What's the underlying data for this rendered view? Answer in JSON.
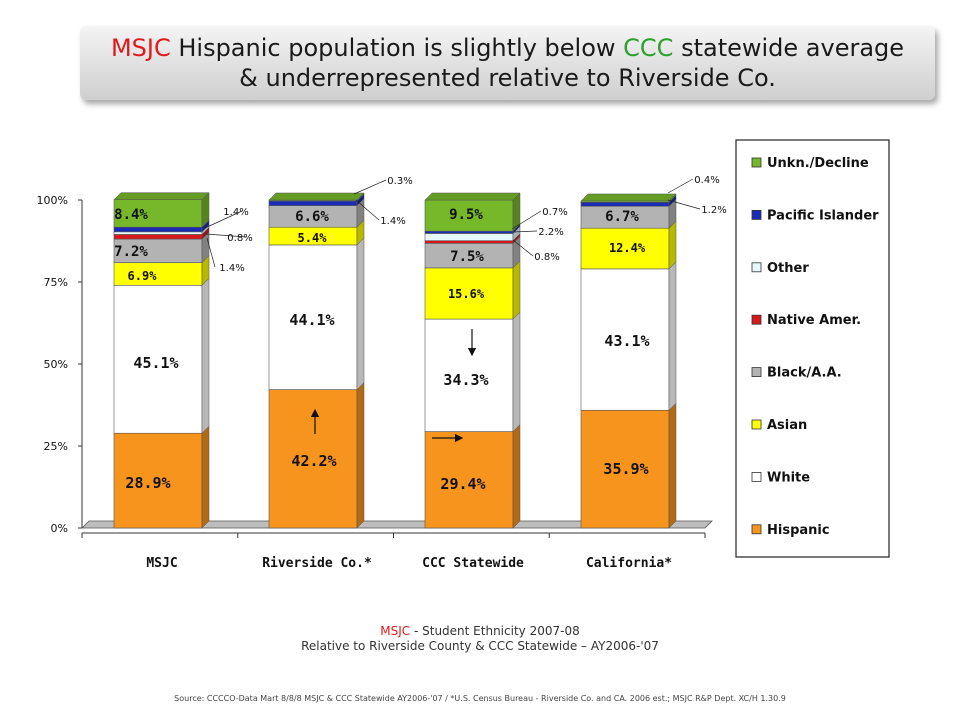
{
  "title": {
    "line1_a": "MSJC",
    "line1_b": " Hispanic population is slightly below ",
    "line1_c": "CCC",
    "line1_d": " statewide average",
    "line2": "& underrepresented relative to Riverside Co."
  },
  "caption": {
    "line1_a": "MSJC",
    "line1_b": " - Student Ethnicity 2007-08",
    "line2": "Relative to Riverside County & CCC Statewide – AY2006-'07"
  },
  "source": "Source: CCCCO-Data Mart 8/8/8 MSJC & CCC Statewide AY2006-'07 / *U.S. Census Bureau - Riverside Co. and CA. 2006 est.; MSJC R&P Dept. XC/H 1.30.9",
  "chart_data": {
    "type": "bar",
    "stacked": true,
    "categories": [
      "MSJC",
      "Riverside Co.*",
      "CCC Statewide",
      "California*"
    ],
    "ylim": [
      0,
      100
    ],
    "yticks": [
      "0%",
      "25%",
      "50%",
      "75%",
      "100%"
    ],
    "legend_position": "right",
    "series": [
      {
        "name": "Hispanic",
        "color": "#f7941d",
        "values": [
          28.9,
          42.2,
          29.4,
          35.9
        ],
        "labels": [
          "28.9%",
          "42.2%",
          "29.4%",
          "35.9%"
        ]
      },
      {
        "name": "White",
        "color": "#ffffff",
        "values": [
          45.1,
          44.1,
          34.3,
          43.1
        ],
        "labels": [
          "45.1%",
          "44.1%",
          "34.3%",
          "43.1%"
        ]
      },
      {
        "name": "Asian",
        "color": "#ffff00",
        "values": [
          6.9,
          5.4,
          15.6,
          12.4
        ],
        "labels": [
          "6.9%",
          "5.4%",
          "15.6%",
          "12.4%"
        ]
      },
      {
        "name": "Black/A.A.",
        "color": "#b3b3b3",
        "values": [
          7.2,
          6.6,
          7.5,
          6.7
        ],
        "labels": [
          "7.2%",
          "6.6%",
          "7.5%",
          "6.7%"
        ]
      },
      {
        "name": "Native Amer.",
        "color": "#d7191c",
        "values": [
          1.4,
          0.0,
          0.8,
          0.0
        ],
        "labels": [
          "1.4%",
          "",
          "0.8%",
          ""
        ]
      },
      {
        "name": "Other",
        "color": "#e6f7ff",
        "values": [
          0.8,
          0.0,
          2.2,
          0.0
        ],
        "labels": [
          "0.8%",
          "",
          "2.2%",
          ""
        ]
      },
      {
        "name": "Pacific Islander",
        "color": "#1a2bb8",
        "values": [
          1.4,
          1.4,
          0.7,
          1.2
        ],
        "labels": [
          "1.4%",
          "1.4%",
          "0.7%",
          "1.2%"
        ]
      },
      {
        "name": "Unkn./Decline",
        "color": "#76b82a",
        "values": [
          8.4,
          0.3,
          9.5,
          0.4
        ],
        "labels": [
          "8.4%",
          "0.3%",
          "9.5%",
          "0.4%"
        ]
      }
    ],
    "legend_order": [
      "Unkn./Decline",
      "Pacific Islander",
      "Other",
      "Native Amer.",
      "Black/A.A.",
      "Asian",
      "White",
      "Hispanic"
    ]
  }
}
